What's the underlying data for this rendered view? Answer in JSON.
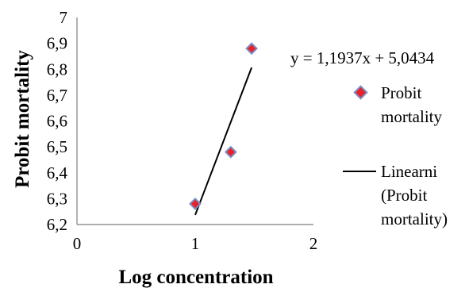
{
  "chart_data": {
    "type": "scatter",
    "xlabel": "Log concentration",
    "ylabel": "Probit mortality",
    "xlim": [
      0,
      2
    ],
    "ylim": [
      6.2,
      7
    ],
    "x_ticks": [
      "0",
      "1",
      "2"
    ],
    "y_ticks": [
      "6,2",
      "6,3",
      "6,4",
      "6,5",
      "6,6",
      "6,7",
      "6,8",
      "6,9",
      "7"
    ],
    "series": [
      {
        "name": "Probit mortality",
        "kind": "points",
        "color": "#e8212b",
        "points": [
          {
            "x": 1.0,
            "y": 6.28
          },
          {
            "x": 1.301,
            "y": 6.48
          },
          {
            "x": 1.477,
            "y": 6.88
          }
        ]
      },
      {
        "name": "Linearni (Probit mortality)",
        "kind": "trendline",
        "color": "#000000",
        "slope": 1.1937,
        "intercept": 5.0434,
        "x_range": [
          1.0,
          1.477
        ]
      }
    ],
    "equation": "y = 1,1937x + 5,0434",
    "legend": {
      "placement": "right",
      "entries": [
        {
          "lines": [
            "Probit",
            "mortality"
          ]
        },
        {
          "lines": [
            "Linearni",
            "(Probit",
            "mortality)"
          ]
        }
      ]
    },
    "grid": false
  }
}
